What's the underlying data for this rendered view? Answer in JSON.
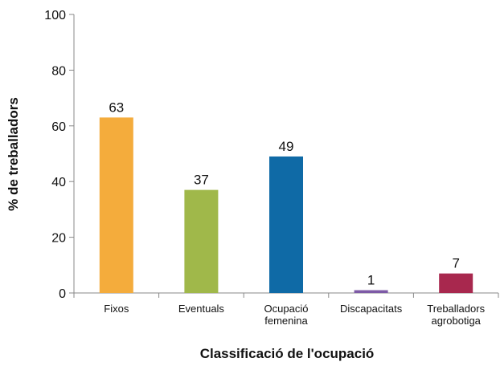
{
  "chart_data": {
    "type": "bar",
    "categories": [
      "Fixos",
      "Eventuals",
      "Ocupació femenina",
      "Discapacitats",
      "Treballadors agrobotiga"
    ],
    "values": [
      63,
      37,
      49,
      1,
      7
    ],
    "colors": [
      "#f4ac3c",
      "#a0b84a",
      "#0f6aa6",
      "#7d5aa6",
      "#a8284e"
    ],
    "x_label": "Classificació de l'ocupació",
    "y_label": "% de treballadors",
    "ylim": [
      0,
      100
    ],
    "yticks": [
      0,
      20,
      40,
      60,
      80,
      100
    ],
    "grid": false
  }
}
